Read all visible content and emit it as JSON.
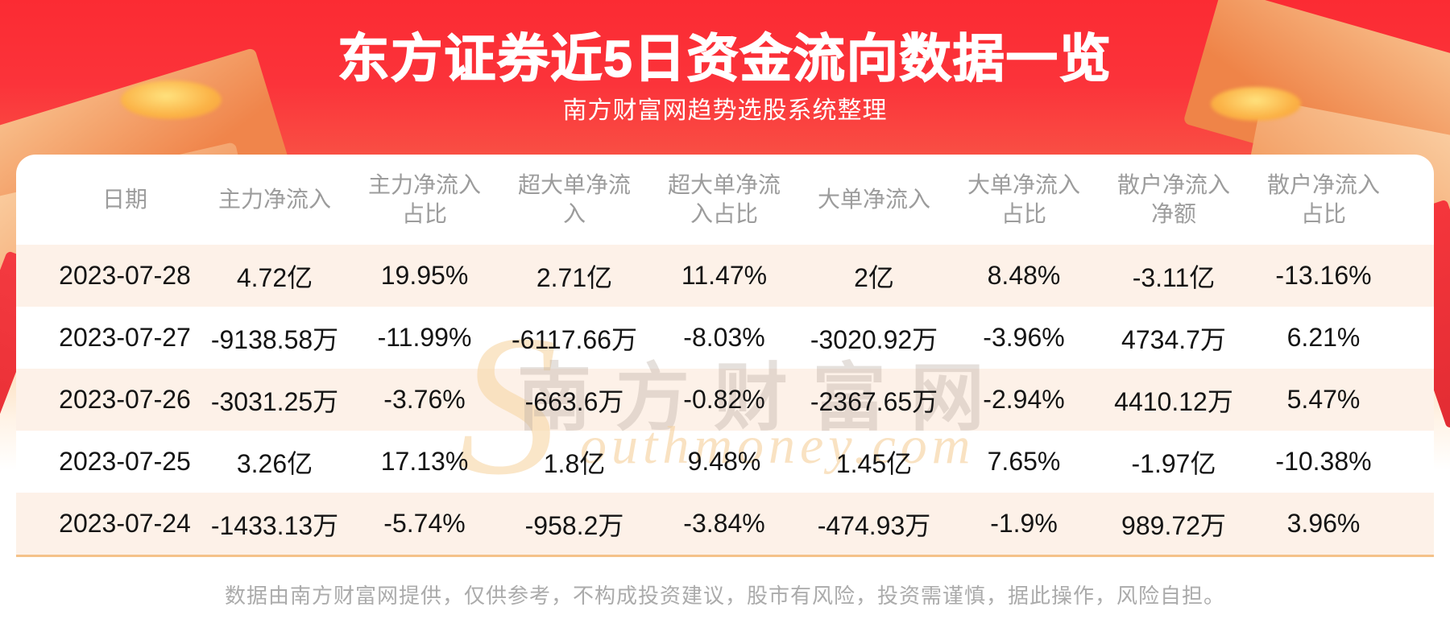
{
  "banner": {
    "title": "东方证券近5日资金流向数据一览",
    "subtitle": "南方财富网趋势选股系统整理"
  },
  "colors": {
    "banner_red": "#fb2b33",
    "accent_orange": "#f0854b",
    "gold": "#fbb246",
    "stripe": "#fdf1e8",
    "divider": "#f5c289",
    "header_text": "#9c9c9c",
    "data_text": "#141414",
    "footer_text": "#ababab",
    "title_text": "#ffffff"
  },
  "chart_data": {
    "type": "table",
    "title": "东方证券近5日资金流向数据一览",
    "subtitle": "南方财富网趋势选股系统整理",
    "columns": [
      "日期",
      "主力净流入",
      "主力净流入占比",
      "超大单净流入",
      "超大单净流入占比",
      "大单净流入",
      "大单净流入占比",
      "散户净流入净额",
      "散户净流入占比"
    ],
    "header_display": [
      "日期",
      "主力净流入",
      "主力净流入\n占比",
      "超大单净流\n入",
      "超大单净流\n入占比",
      "大单净流入",
      "大单净流入\n占比",
      "散户净流入\n净额",
      "散户净流入\n占比"
    ],
    "rows": [
      [
        "2023-07-28",
        "4.72亿",
        "19.95%",
        "2.71亿",
        "11.47%",
        "2亿",
        "8.48%",
        "-3.11亿",
        "-13.16%"
      ],
      [
        "2023-07-27",
        "-9138.58万",
        "-11.99%",
        "-6117.66万",
        "-8.03%",
        "-3020.92万",
        "-3.96%",
        "4734.7万",
        "6.21%"
      ],
      [
        "2023-07-26",
        "-3031.25万",
        "-3.76%",
        "-663.6万",
        "-0.82%",
        "-2367.65万",
        "-2.94%",
        "4410.12万",
        "5.47%"
      ],
      [
        "2023-07-25",
        "3.26亿",
        "17.13%",
        "1.8亿",
        "9.48%",
        "1.45亿",
        "7.65%",
        "-1.97亿",
        "-10.38%"
      ],
      [
        "2023-07-24",
        "-1433.13万",
        "-5.74%",
        "-958.2万",
        "-3.84%",
        "-474.93万",
        "-1.9%",
        "989.72万",
        "3.96%"
      ]
    ]
  },
  "watermark": {
    "big_letter": "S",
    "cn_text": "南方财富网",
    "en_text": "outhmoney.com"
  },
  "footer": {
    "disclaimer": "数据由南方财富网提供，仅供参考，不构成投资建议，股市有风险，投资需谨慎，据此操作，风险自担。"
  }
}
